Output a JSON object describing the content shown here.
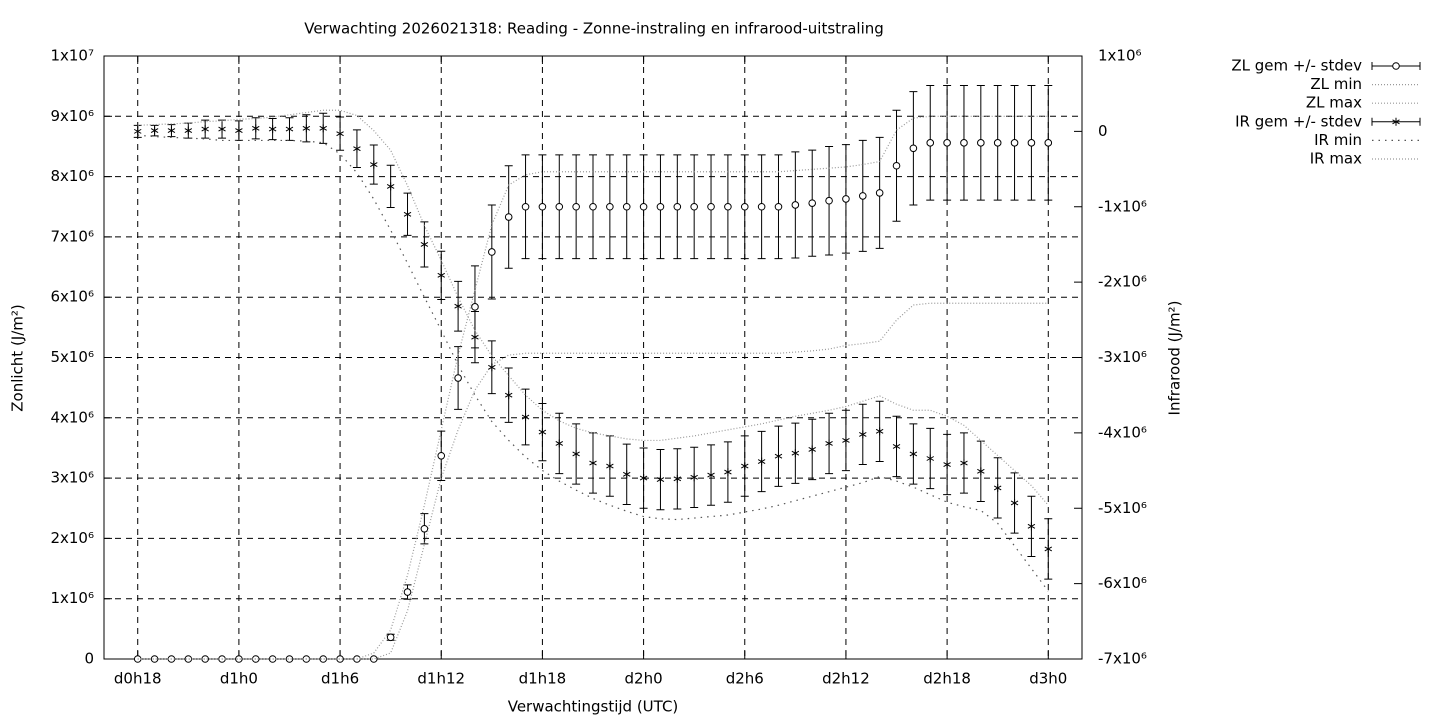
{
  "chart_data": {
    "type": "errorbar-line",
    "title": "Verwachting 2026021318: Reading - Zonne-instraling en infrarood-uitstraling",
    "xlabel": "Verwachtingstijd (UTC)",
    "ylabel": "Zonlicht (J/m²)",
    "y2label": "Infrarood (J/m²)",
    "grid": true,
    "legend": "right",
    "x": [
      18,
      19,
      20,
      21,
      22,
      23,
      24,
      25,
      26,
      27,
      28,
      29,
      30,
      31,
      32,
      33,
      34,
      35,
      36,
      37,
      38,
      39,
      40,
      41,
      42,
      43,
      44,
      45,
      46,
      47,
      48,
      49,
      50,
      51,
      52,
      53,
      54,
      55,
      56,
      57,
      58,
      59,
      60,
      61,
      62,
      63,
      64,
      65,
      66,
      67,
      68,
      69,
      70,
      71,
      72
    ],
    "xlim": [
      16,
      74
    ],
    "xticks": [
      {
        "value": 18,
        "label": "d0h18"
      },
      {
        "value": 24,
        "label": "d1h0"
      },
      {
        "value": 30,
        "label": "d1h6"
      },
      {
        "value": 36,
        "label": "d1h12"
      },
      {
        "value": 42,
        "label": "d1h18"
      },
      {
        "value": 48,
        "label": "d2h0"
      },
      {
        "value": 54,
        "label": "d2h6"
      },
      {
        "value": 60,
        "label": "d2h12"
      },
      {
        "value": 66,
        "label": "d2h18"
      },
      {
        "value": 72,
        "label": "d3h0"
      }
    ],
    "ylim": [
      0,
      10000000
    ],
    "yticks": [
      0,
      {
        "value": 1000000,
        "label": "1x10⁶"
      },
      {
        "value": 2000000,
        "label": "2x10⁶"
      },
      {
        "value": 3000000,
        "label": "3x10⁶"
      },
      {
        "value": 4000000,
        "label": "4x10⁶"
      },
      {
        "value": 5000000,
        "label": "5x10⁶"
      },
      {
        "value": 6000000,
        "label": "6x10⁶"
      },
      {
        "value": 7000000,
        "label": "7x10⁶"
      },
      {
        "value": 8000000,
        "label": "8x10⁶"
      },
      {
        "value": 9000000,
        "label": "9x10⁶"
      },
      {
        "value": 10000000,
        "label": "1x10⁷"
      }
    ],
    "y2lim": [
      -7000000,
      1000000
    ],
    "y2ticks": [
      {
        "value": 1000000,
        "label": "1x10⁶"
      },
      0,
      {
        "value": -1000000,
        "label": "-1x10⁶"
      },
      {
        "value": -2000000,
        "label": "-2x10⁶"
      },
      {
        "value": -3000000,
        "label": "-3x10⁶"
      },
      {
        "value": -4000000,
        "label": "-4x10⁶"
      },
      {
        "value": -5000000,
        "label": "-5x10⁶"
      },
      {
        "value": -6000000,
        "label": "-6x10⁶"
      },
      {
        "value": -7000000,
        "label": "-7x10⁶"
      }
    ],
    "series": [
      {
        "name": "ZL gem +/- stdev",
        "color": "#000000",
        "axis": "y",
        "marker": "circle",
        "line_style": "none",
        "values": [
          0,
          0,
          0,
          0,
          0,
          0,
          0,
          0,
          0,
          0,
          0,
          0,
          0,
          0,
          0,
          360000.0,
          1110000.0,
          2160000.0,
          3370000.0,
          4660000.0,
          5840000.0,
          6750000.0,
          7330000.0,
          7500000.0,
          7500000.0,
          7500000.0,
          7500000.0,
          7500000.0,
          7500000.0,
          7500000.0,
          7500000.0,
          7500000.0,
          7500000.0,
          7500000.0,
          7500000.0,
          7500000.0,
          7500000.0,
          7500000.0,
          7500000.0,
          7530000.0,
          7560000.0,
          7600000.0,
          7630000.0,
          7680000.0,
          7730000.0,
          8180000.0,
          8470000.0,
          8560000.0,
          8560000.0,
          8560000.0,
          8560000.0,
          8560000.0,
          8560000.0,
          8560000.0,
          8560000.0
        ],
        "stdev": [
          0,
          0,
          0,
          0,
          0,
          0,
          0,
          0,
          0,
          0,
          0,
          0,
          0,
          0,
          0,
          50000.0,
          120000.0,
          250000.0,
          410000.0,
          520000.0,
          680000.0,
          780000.0,
          850000.0,
          860000.0,
          860000.0,
          860000.0,
          860000.0,
          860000.0,
          860000.0,
          860000.0,
          860000.0,
          860000.0,
          860000.0,
          860000.0,
          860000.0,
          860000.0,
          860000.0,
          860000.0,
          860000.0,
          880000.0,
          880000.0,
          900000.0,
          900000.0,
          920000.0,
          920000.0,
          920000.0,
          940000.0,
          950000.0,
          950000.0,
          950000.0,
          950000.0,
          950000.0,
          950000.0,
          950000.0,
          950000.0
        ]
      },
      {
        "name": "ZL min",
        "color": "#999999",
        "axis": "y",
        "marker": "none",
        "line_style": "dotted",
        "values": [
          0,
          0,
          0,
          0,
          0,
          0,
          0,
          0,
          0,
          0,
          0,
          0,
          0,
          0,
          0,
          100000.0,
          800000.0,
          1900000.0,
          3000000.0,
          3800000.0,
          4460000.0,
          4880000.0,
          5040000.0,
          5070000.0,
          5070000.0,
          5070000.0,
          5070000.0,
          5070000.0,
          5070000.0,
          5070000.0,
          5070000.0,
          5070000.0,
          5070000.0,
          5070000.0,
          5070000.0,
          5070000.0,
          5070000.0,
          5070000.0,
          5070000.0,
          5090000.0,
          5110000.0,
          5140000.0,
          5200000.0,
          5230000.0,
          5270000.0,
          5620000.0,
          5870000.0,
          5900000.0,
          5900000.0,
          5900000.0,
          5900000.0,
          5900000.0,
          5900000.0,
          5900000.0,
          5900000.0
        ]
      },
      {
        "name": "ZL max",
        "color": "#999999",
        "axis": "y",
        "marker": "none",
        "line_style": "dotted",
        "values": [
          0,
          0,
          0,
          0,
          0,
          0,
          0,
          0,
          0,
          0,
          0,
          0,
          0,
          0,
          100000.0,
          480000.0,
          1390000.0,
          2550000.0,
          3800000.0,
          5040000.0,
          6120000.0,
          7200000.0,
          7860000.0,
          8030000.0,
          8080000.0,
          8080000.0,
          8080000.0,
          8080000.0,
          8080000.0,
          8080000.0,
          8080000.0,
          8080000.0,
          8080000.0,
          8080000.0,
          8080000.0,
          8080000.0,
          8080000.0,
          8080000.0,
          8080000.0,
          8100000.0,
          8120000.0,
          8140000.0,
          8160000.0,
          8200000.0,
          8250000.0,
          8770000.0,
          8970000.0,
          9000000.0,
          9000000.0,
          9000000.0,
          9000000.0,
          9000000.0,
          9000000.0,
          9000000.0,
          9000000.0
        ]
      },
      {
        "name": "IR gem +/- stdev",
        "color": "#000000",
        "axis": "y2",
        "marker": "star",
        "line_style": "none",
        "values": [
          0,
          10000.0,
          10000.0,
          10000.0,
          30000.0,
          30000.0,
          10000.0,
          40000.0,
          30000.0,
          30000.0,
          40000.0,
          40000.0,
          -30000.0,
          -230000.0,
          -440000.0,
          -730000.0,
          -1100000.0,
          -1500000.0,
          -1910000.0,
          -2320000.0,
          -2730000.0,
          -3130000.0,
          -3500000.0,
          -3790000.0,
          -3990000.0,
          -4140000.0,
          -4280000.0,
          -4400000.0,
          -4440000.0,
          -4550000.0,
          -4600000.0,
          -4620000.0,
          -4610000.0,
          -4590000.0,
          -4560000.0,
          -4520000.0,
          -4440000.0,
          -4380000.0,
          -4310000.0,
          -4270000.0,
          -4220000.0,
          -4140000.0,
          -4100000.0,
          -4020000.0,
          -3980000.0,
          -4180000.0,
          -4280000.0,
          -4340000.0,
          -4420000.0,
          -4400000.0,
          -4510000.0,
          -4730000.0,
          -4930000.0,
          -5240000.0,
          -5540000.0
        ],
        "stdev": [
          80000.0,
          70000.0,
          80000.0,
          100000.0,
          120000.0,
          120000.0,
          130000.0,
          140000.0,
          140000.0,
          150000.0,
          180000.0,
          200000.0,
          220000.0,
          250000.0,
          260000.0,
          280000.0,
          280000.0,
          300000.0,
          320000.0,
          330000.0,
          340000.0,
          350000.0,
          360000.0,
          370000.0,
          380000.0,
          400000.0,
          400000.0,
          400000.0,
          400000.0,
          400000.0,
          400000.0,
          400000.0,
          400000.0,
          400000.0,
          400000.0,
          400000.0,
          400000.0,
          400000.0,
          400000.0,
          400000.0,
          400000.0,
          400000.0,
          400000.0,
          400000.0,
          400000.0,
          400000.0,
          400000.0,
          400000.0,
          400000.0,
          400000.0,
          400000.0,
          400000.0,
          400000.0,
          400000.0,
          400000.0
        ]
      },
      {
        "name": "IR min",
        "color": "#555555",
        "axis": "y2",
        "marker": "none",
        "line_style": "sparse-dotted",
        "values": [
          -50000.0,
          -70000.0,
          -80000.0,
          -90000.0,
          -100000.0,
          -120000.0,
          -120000.0,
          -120000.0,
          -120000.0,
          -120000.0,
          -130000.0,
          -150000.0,
          -300000.0,
          -550000.0,
          -900000.0,
          -1310000.0,
          -1750000.0,
          -2200000.0,
          -2640000.0,
          -3100000.0,
          -3500000.0,
          -3850000.0,
          -4100000.0,
          -4320000.0,
          -4500000.0,
          -4640000.0,
          -4760000.0,
          -4870000.0,
          -4960000.0,
          -5040000.0,
          -5110000.0,
          -5140000.0,
          -5150000.0,
          -5130000.0,
          -5110000.0,
          -5090000.0,
          -5050000.0,
          -5010000.0,
          -4960000.0,
          -4900000.0,
          -4840000.0,
          -4780000.0,
          -4720000.0,
          -4660000.0,
          -4580000.0,
          -4640000.0,
          -4720000.0,
          -4820000.0,
          -4920000.0,
          -4980000.0,
          -5030000.0,
          -5200000.0,
          -5500000.0,
          -5800000.0,
          -6100000.0
        ]
      },
      {
        "name": "IR max",
        "color": "#999999",
        "axis": "y2",
        "marker": "none",
        "line_style": "dotted",
        "values": [
          80000.0,
          90000.0,
          100000.0,
          110000.0,
          130000.0,
          140000.0,
          160000.0,
          170000.0,
          190000.0,
          220000.0,
          250000.0,
          280000.0,
          280000.0,
          210000.0,
          10000.0,
          -250000.0,
          -720000.0,
          -1250000.0,
          -1710000.0,
          -2200000.0,
          -2640000.0,
          -2980000.0,
          -3240000.0,
          -3500000.0,
          -3700000.0,
          -3840000.0,
          -3940000.0,
          -4000000.0,
          -4040000.0,
          -4080000.0,
          -4100000.0,
          -4100000.0,
          -4070000.0,
          -4040000.0,
          -4000000.0,
          -3960000.0,
          -3920000.0,
          -3880000.0,
          -3830000.0,
          -3780000.0,
          -3740000.0,
          -3700000.0,
          -3650000.0,
          -3580000.0,
          -3510000.0,
          -3620000.0,
          -3700000.0,
          -3700000.0,
          -3780000.0,
          -3900000.0,
          -4100000.0,
          -4300000.0,
          -4500000.0,
          -4700000.0,
          -4960000.0
        ]
      }
    ]
  }
}
